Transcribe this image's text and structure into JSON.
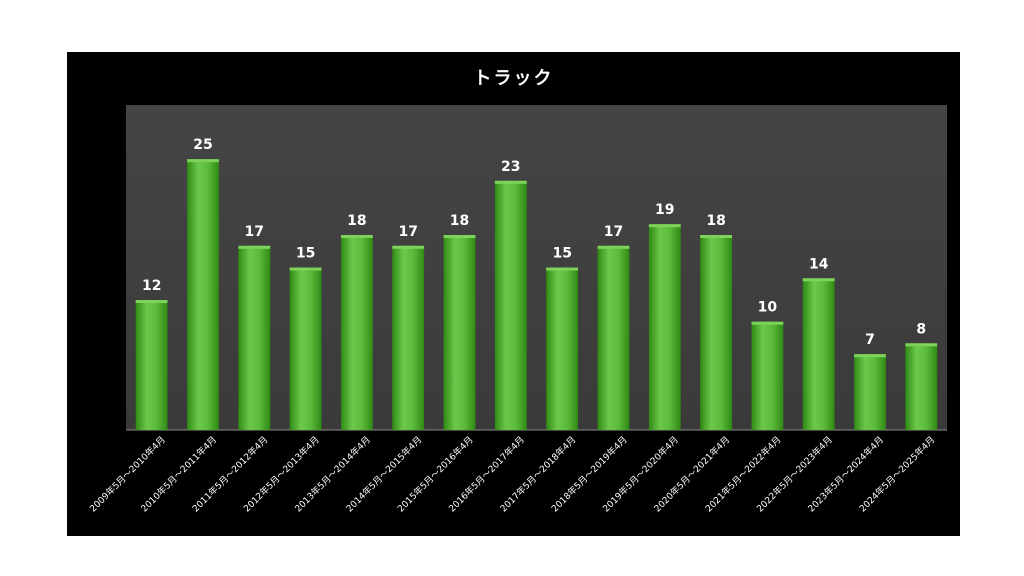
{
  "chart_data": {
    "type": "bar",
    "title": "トラック",
    "xlabel": "",
    "ylabel": "",
    "ylim": [
      0,
      30
    ],
    "grid": false,
    "legend": "none",
    "categories": [
      "2009年5月～2010年4月",
      "2010年5月～2011年4月",
      "2011年5月～2012年4月",
      "2012年5月～2013年4月",
      "2013年5月～2014年4月",
      "2014年5月～2015年4月",
      "2015年5月～2016年4月",
      "2016年5月～2017年4月",
      "2017年5月～2018年4月",
      "2018年5月～2019年4月",
      "2019年5月～2020年4月",
      "2020年5月～2021年4月",
      "2021年5月～2022年4月",
      "2022年5月～2023年4月",
      "2023年5月～2024年4月",
      "2024年5月～2025年4月"
    ],
    "values": [
      12,
      25,
      17,
      15,
      18,
      17,
      18,
      23,
      15,
      17,
      19,
      18,
      10,
      14,
      7,
      8
    ],
    "colors": {
      "bar": "#4caf2a",
      "bar_light": "#7fd35a",
      "bar_dark": "#2f8a15",
      "plot_bg": "#404040",
      "frame_bg": "#000000",
      "text": "#ffffff"
    }
  }
}
